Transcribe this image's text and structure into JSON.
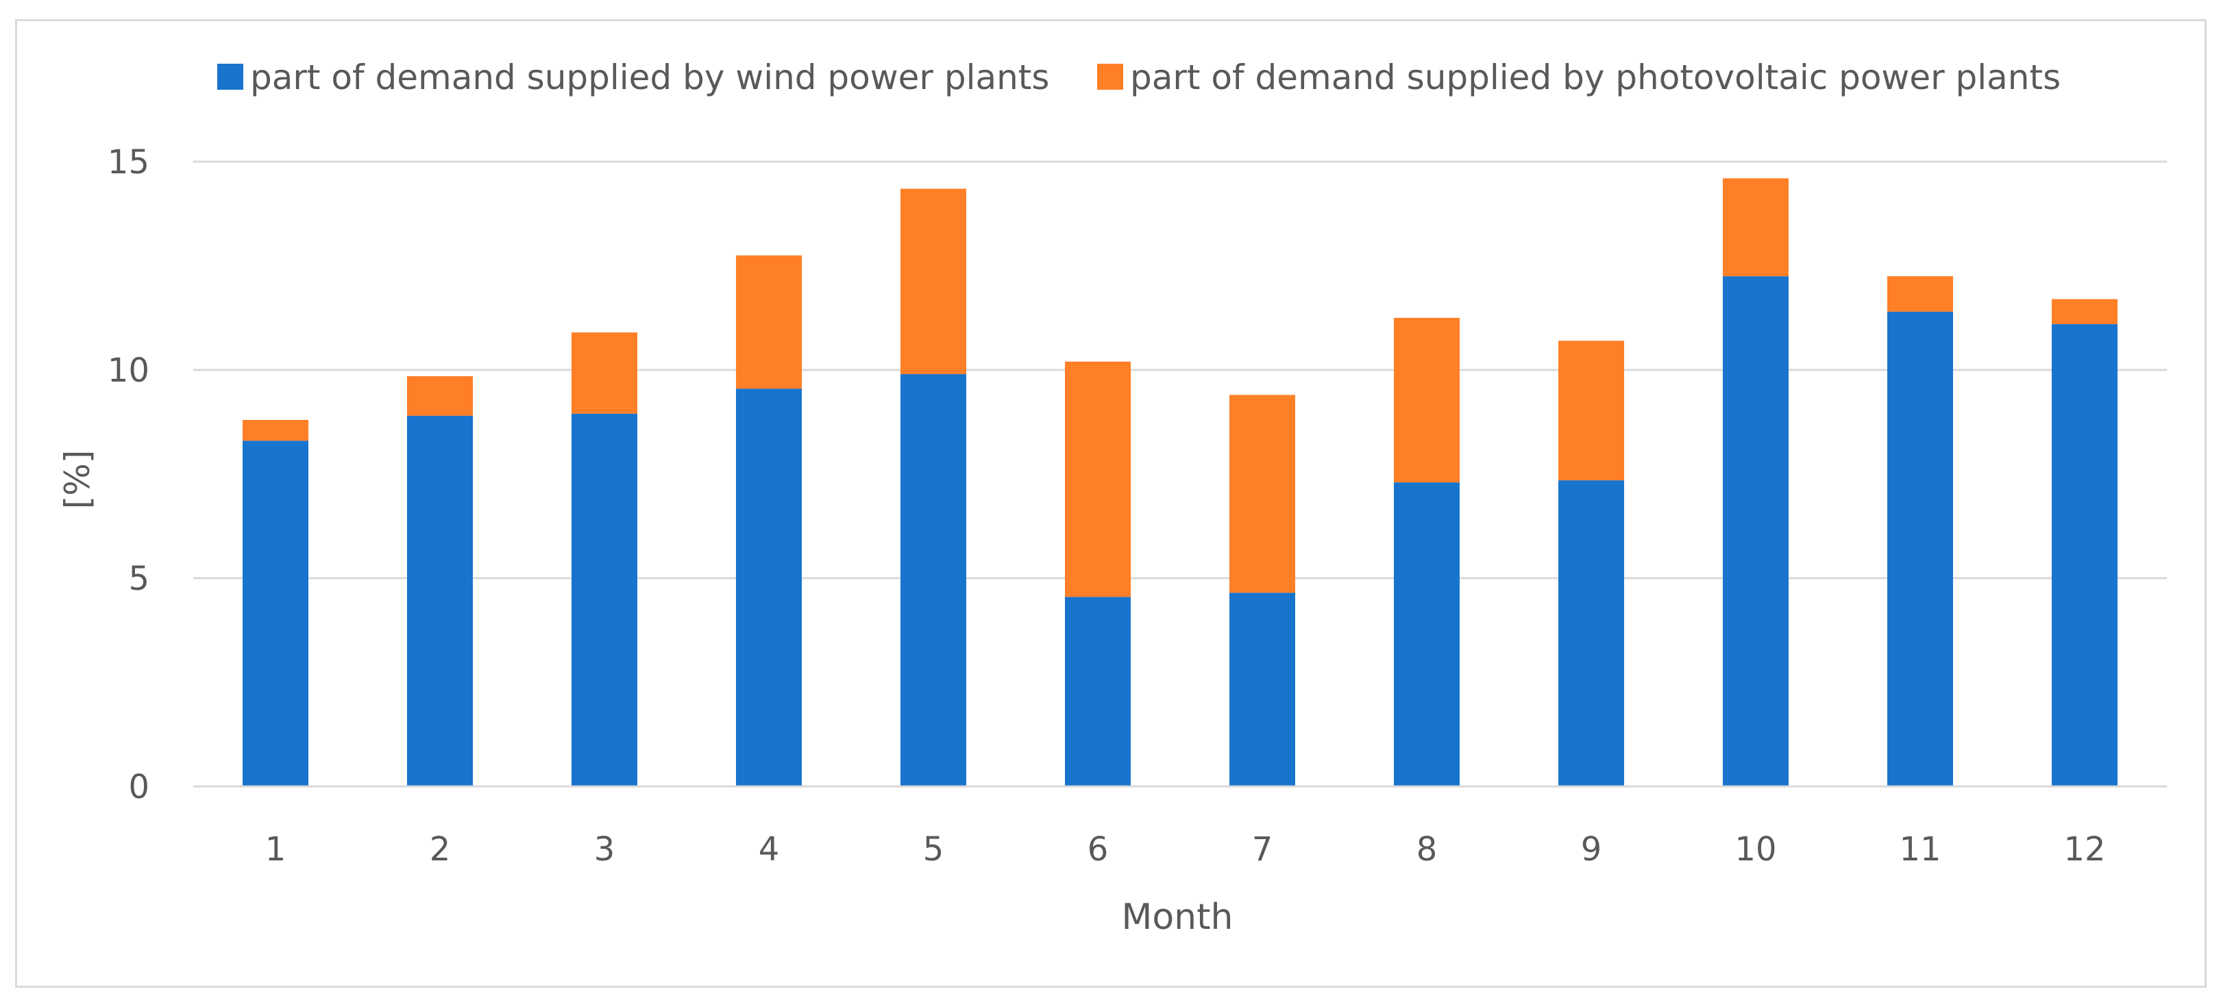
{
  "chart_data": {
    "type": "bar",
    "stacked": true,
    "title": "",
    "xlabel": "Month",
    "ylabel": "[%]",
    "categories": [
      "1",
      "2",
      "3",
      "4",
      "5",
      "6",
      "7",
      "8",
      "9",
      "10",
      "11",
      "12"
    ],
    "yticks": [
      "0",
      "5",
      "10",
      "15"
    ],
    "ylim": [
      0,
      17.5
    ],
    "grid": true,
    "legend_position": "top",
    "series": [
      {
        "name": "part of demand supplied by wind power plants",
        "color": "#1874CD",
        "values": [
          8.3,
          8.9,
          8.95,
          9.55,
          9.9,
          4.55,
          4.65,
          7.3,
          7.35,
          12.25,
          11.4,
          11.1
        ]
      },
      {
        "name": "part of demand supplied by photovoltaic power plants",
        "color": "#FF7F27",
        "values": [
          0.5,
          0.95,
          1.95,
          3.2,
          4.45,
          5.65,
          4.75,
          3.95,
          3.35,
          2.35,
          0.85,
          0.6
        ]
      }
    ]
  }
}
